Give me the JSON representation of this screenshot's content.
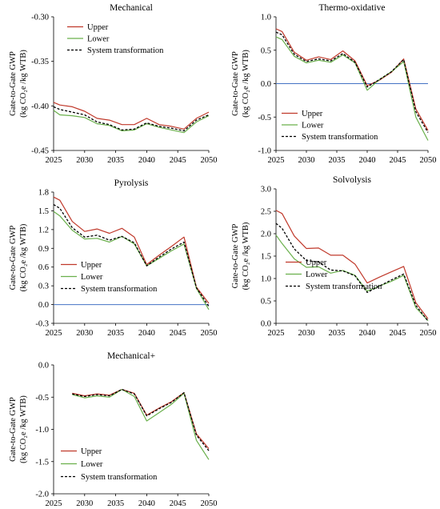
{
  "colors": {
    "upper": "#c0392b",
    "lower": "#6ab04c",
    "system": "#000000",
    "zero_line": "#4472c4"
  },
  "legend": [
    "Upper",
    "Lower",
    "System transformation"
  ],
  "chart_data": [
    {
      "type": "line",
      "title": "Mechanical",
      "ylabel": "Gate-to-Gate GWP",
      "ylabel2": "(kg CO₂e /kg WTB)",
      "xlim": [
        2025,
        2050
      ],
      "ylim": [
        -0.45,
        -0.3
      ],
      "yticks": [
        "-0.30",
        "-0.35",
        "-0.40",
        "-0.45"
      ],
      "xticks": [
        "2025",
        "2030",
        "2035",
        "2040",
        "2045",
        "2050"
      ],
      "x": [
        2025,
        2026,
        2028,
        2030,
        2032,
        2034,
        2036,
        2038,
        2040,
        2042,
        2044,
        2046,
        2048,
        2050
      ],
      "series": [
        {
          "name": "Upper",
          "values": [
            -0.396,
            -0.399,
            -0.401,
            -0.406,
            -0.414,
            -0.416,
            -0.421,
            -0.421,
            -0.414,
            -0.421,
            -0.423,
            -0.426,
            -0.414,
            -0.407
          ]
        },
        {
          "name": "Lower",
          "values": [
            -0.405,
            -0.41,
            -0.411,
            -0.413,
            -0.42,
            -0.422,
            -0.428,
            -0.427,
            -0.42,
            -0.424,
            -0.427,
            -0.43,
            -0.418,
            -0.411
          ]
        },
        {
          "name": "System transformation",
          "values": [
            -0.401,
            -0.404,
            -0.407,
            -0.41,
            -0.418,
            -0.421,
            -0.427,
            -0.426,
            -0.419,
            -0.423,
            -0.425,
            -0.428,
            -0.416,
            -0.41
          ]
        }
      ]
    },
    {
      "type": "line",
      "title": "Thermo-oxidative",
      "ylabel": "Gate-to-Gate GWP",
      "ylabel2": "(kg CO₂e /kg WTB)",
      "xlim": [
        2025,
        2050
      ],
      "ylim": [
        -1.0,
        1.0
      ],
      "yticks": [
        "1.0",
        "0.5",
        "0.0",
        "-0.5",
        "-1.0"
      ],
      "xticks": [
        "2025",
        "2030",
        "2035",
        "2040",
        "2045",
        "2050"
      ],
      "x": [
        2025,
        2026,
        2028,
        2030,
        2032,
        2034,
        2036,
        2038,
        2040,
        2042,
        2044,
        2046,
        2048,
        2050
      ],
      "series": [
        {
          "name": "Upper",
          "values": [
            0.82,
            0.78,
            0.47,
            0.35,
            0.4,
            0.36,
            0.49,
            0.34,
            -0.03,
            0.05,
            0.17,
            0.37,
            -0.38,
            -0.7
          ]
        },
        {
          "name": "Lower",
          "values": [
            0.7,
            0.66,
            0.41,
            0.31,
            0.35,
            0.32,
            0.43,
            0.31,
            -0.1,
            0.06,
            0.18,
            0.33,
            -0.5,
            -0.85
          ]
        },
        {
          "name": "System transformation",
          "values": [
            0.77,
            0.73,
            0.44,
            0.33,
            0.37,
            0.34,
            0.45,
            0.32,
            -0.05,
            0.06,
            0.18,
            0.36,
            -0.42,
            -0.73
          ]
        }
      ]
    },
    {
      "type": "line",
      "title": "Pyrolysis",
      "ylabel": "Gate-to-Gate GWP",
      "ylabel2": "(kg CO₂e /kg WTB)",
      "xlim": [
        2025,
        2050
      ],
      "ylim": [
        -0.3,
        1.8
      ],
      "yticks": [
        "1.8",
        "1.5",
        "1.2",
        "0.9",
        "0.6",
        "0.3",
        "0.0",
        "-0.3"
      ],
      "xticks": [
        "2025",
        "2030",
        "2035",
        "2040",
        "2045",
        "2050"
      ],
      "x": [
        2025,
        2026,
        2028,
        2030,
        2032,
        2034,
        2036,
        2038,
        2040,
        2042,
        2044,
        2046,
        2048,
        2050
      ],
      "series": [
        {
          "name": "Upper",
          "values": [
            1.72,
            1.67,
            1.33,
            1.17,
            1.21,
            1.14,
            1.22,
            1.08,
            0.64,
            0.79,
            0.93,
            1.08,
            0.28,
            0.02
          ]
        },
        {
          "name": "Lower",
          "values": [
            1.49,
            1.42,
            1.19,
            1.05,
            1.06,
            1.0,
            1.09,
            0.97,
            0.62,
            0.74,
            0.86,
            0.97,
            0.26,
            -0.08
          ]
        },
        {
          "name": "System transformation",
          "values": [
            1.6,
            1.54,
            1.23,
            1.08,
            1.11,
            1.03,
            1.09,
            0.99,
            0.62,
            0.76,
            0.89,
            1.0,
            0.27,
            -0.03
          ]
        }
      ]
    },
    {
      "type": "line",
      "title": "Solvolysis",
      "ylabel": "Gate-to-Gate GWP",
      "ylabel2": "(kg CO₂e /kg WTB)",
      "xlim": [
        2025,
        2050
      ],
      "ylim": [
        0.0,
        3.0
      ],
      "yticks": [
        "3.0",
        "2.5",
        "2.0",
        "1.5",
        "1.0",
        "0.5",
        "0.0"
      ],
      "xticks": [
        "2025",
        "2030",
        "2035",
        "2040",
        "2045",
        "2050"
      ],
      "x": [
        2025,
        2026,
        2028,
        2030,
        2032,
        2034,
        2036,
        2038,
        2040,
        2042,
        2044,
        2046,
        2048,
        2050
      ],
      "series": [
        {
          "name": "Upper",
          "values": [
            2.52,
            2.45,
            1.95,
            1.67,
            1.68,
            1.52,
            1.52,
            1.32,
            0.9,
            1.03,
            1.15,
            1.27,
            0.46,
            0.1
          ]
        },
        {
          "name": "Lower",
          "values": [
            1.97,
            1.78,
            1.44,
            1.25,
            1.26,
            1.12,
            1.18,
            1.07,
            0.72,
            0.83,
            0.94,
            1.07,
            0.35,
            0.06
          ]
        },
        {
          "name": "System transformation",
          "values": [
            2.23,
            2.12,
            1.66,
            1.4,
            1.37,
            1.19,
            1.17,
            1.06,
            0.69,
            0.83,
            0.97,
            1.1,
            0.4,
            0.05
          ]
        }
      ]
    },
    {
      "type": "line",
      "title": "Mechanical+",
      "ylabel": "Gate-to-Gate GWP",
      "ylabel2": "(kg CO₂e /kg WTB)",
      "xlim": [
        2025,
        2050
      ],
      "ylim": [
        -2.0,
        0.0
      ],
      "yticks": [
        "0.0",
        "-0.5",
        "-1.0",
        "-1.5",
        "-2.0"
      ],
      "xticks": [
        "2025",
        "2030",
        "2035",
        "2040",
        "2045",
        "2050"
      ],
      "x": [
        2028,
        2030,
        2032,
        2034,
        2036,
        2038,
        2040,
        2042,
        2044,
        2046,
        2048,
        2050
      ],
      "series": [
        {
          "name": "Upper",
          "values": [
            -0.44,
            -0.48,
            -0.45,
            -0.47,
            -0.38,
            -0.44,
            -0.78,
            -0.67,
            -0.57,
            -0.43,
            -1.07,
            -1.3
          ]
        },
        {
          "name": "Lower",
          "values": [
            -0.46,
            -0.51,
            -0.48,
            -0.5,
            -0.38,
            -0.49,
            -0.87,
            -0.74,
            -0.61,
            -0.44,
            -1.17,
            -1.47
          ]
        },
        {
          "name": "System transformation",
          "values": [
            -0.45,
            -0.49,
            -0.46,
            -0.48,
            -0.38,
            -0.45,
            -0.79,
            -0.68,
            -0.58,
            -0.43,
            -1.09,
            -1.33
          ]
        }
      ]
    }
  ]
}
